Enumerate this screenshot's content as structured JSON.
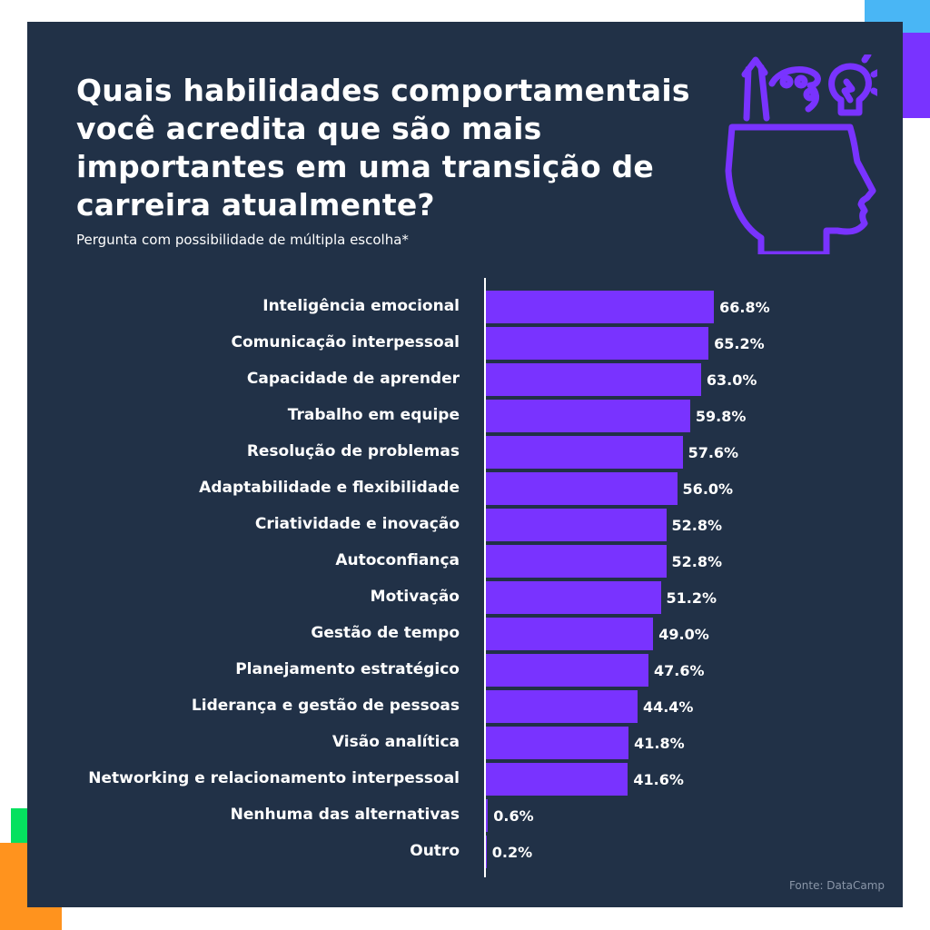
{
  "colors": {
    "background": "#213147",
    "bar": "#7933ff",
    "text": "#ffffff",
    "source_text": "#8a96a8",
    "accent_blue": "#49b6f5",
    "accent_green": "#05e15f",
    "accent_orange": "#ff931e"
  },
  "icon": "head-with-ideas-icon",
  "chart_data": {
    "type": "bar",
    "orientation": "horizontal",
    "title": "Quais habilidades comportamentais você acredita que são mais importantes em uma transição de carreira atualmente?",
    "subtitle": "Pergunta com possibilidade de múltipla escolha*",
    "source": "Fonte: DataCamp",
    "unit": "%",
    "xlim": [
      0,
      100
    ],
    "categories": [
      "Inteligência emocional",
      "Comunicação interpessoal",
      "Capacidade de aprender",
      "Trabalho em equipe",
      "Resolução de problemas",
      "Adaptabilidade e flexibilidade",
      "Criatividade e inovação",
      "Autoconfiança",
      "Motivação",
      "Gestão de tempo",
      "Planejamento estratégico",
      "Liderança e gestão de pessoas",
      "Visão analítica",
      "Networking e relacionamento interpessoal",
      "Nenhuma das alternativas",
      "Outro"
    ],
    "values": [
      66.8,
      65.2,
      63.0,
      59.8,
      57.6,
      56.0,
      52.8,
      52.8,
      51.2,
      49.0,
      47.6,
      44.4,
      41.8,
      41.6,
      0.6,
      0.2
    ],
    "value_labels": [
      "66.8%",
      "65.2%",
      "63.0%",
      "59.8%",
      "57.6%",
      "56.0%",
      "52.8%",
      "52.8%",
      "51.2%",
      "49.0%",
      "47.6%",
      "44.4%",
      "41.8%",
      "41.6%",
      "0.6%",
      "0.2%"
    ]
  }
}
